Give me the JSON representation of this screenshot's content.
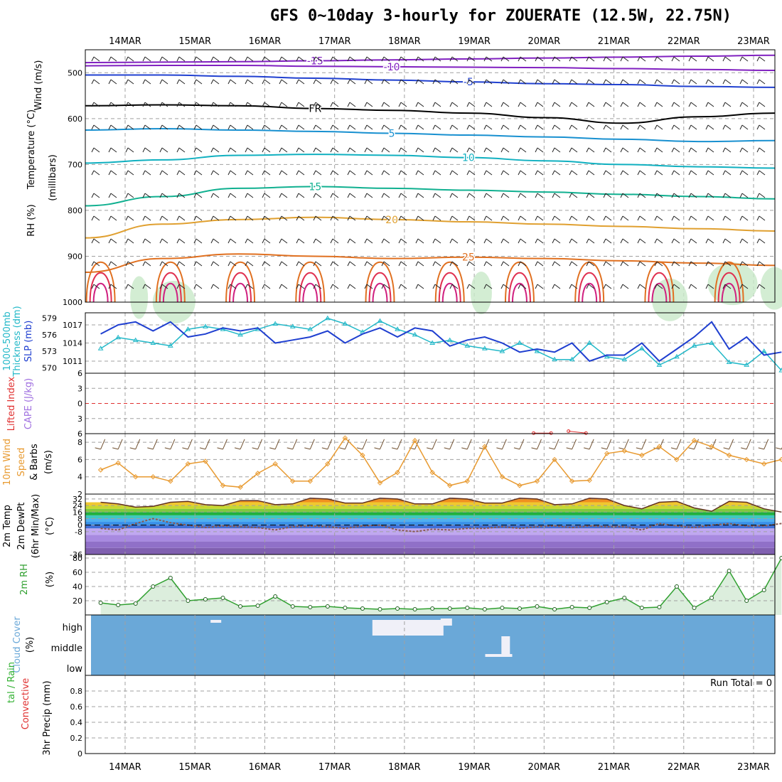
{
  "title": "GFS 0~10day 3-hourly for ZOUERATE (12.5W, 22.75N)",
  "date_labels": [
    "14MAR",
    "15MAR",
    "16MAR",
    "17MAR",
    "18MAR",
    "19MAR",
    "20MAR",
    "21MAR",
    "22MAR",
    "23MAR"
  ],
  "run_total_text": "Run Total = 0",
  "colors": {
    "frame": "#000000",
    "grid": "#a0a0a0",
    "slp": "#1f3fd0",
    "thickness": "#22b8c8",
    "wind10": "#e89a30",
    "lifted": "#e03030",
    "cape": "#a070e0",
    "rh": "#30a030",
    "cloud": "#6aa8d8",
    "temp_fill_warm": "#e85020",
    "dewpt": "#808080"
  },
  "panel_labels": {
    "p1": [
      {
        "text": "Wind (m/s)",
        "color": "#000000"
      },
      {
        "text": "Temperature (°C)",
        "color": "#000000"
      },
      {
        "text": "RH (%)",
        "color": "#000000"
      },
      {
        "text": "(millibars)",
        "color": "#000000"
      }
    ],
    "p2": [
      {
        "text": "1000-500mb",
        "color": "#22b8c8"
      },
      {
        "text": "Thickness (dm)",
        "color": "#22b8c8"
      },
      {
        "text": "SLP (mb)",
        "color": "#1f3fd0"
      }
    ],
    "p3": [
      {
        "text": "Lifted Index",
        "color": "#e03030"
      },
      {
        "text": "CAPE (J/kg)",
        "color": "#a070e0"
      }
    ],
    "p4": [
      {
        "text": "10m Wind",
        "color": "#e89a30"
      },
      {
        "text": "Speed",
        "color": "#e89a30"
      },
      {
        "text": "& Barbs",
        "color": "#000000"
      },
      {
        "text": "(m/s)",
        "color": "#000000"
      }
    ],
    "p5": [
      {
        "text": "2m Temp",
        "color": "#000000"
      },
      {
        "text": "2m DewPt",
        "color": "#000000"
      },
      {
        "text": "(6hr Min/Max)",
        "color": "#000000"
      },
      {
        "text": "(°C)",
        "color": "#000000"
      }
    ],
    "p6": [
      {
        "text": "2m RH",
        "color": "#30a030"
      },
      {
        "text": "(%)",
        "color": "#000000"
      }
    ],
    "p7": [
      {
        "text": "Cloud Cover",
        "color": "#6aa8d8"
      },
      {
        "text": "(%)",
        "color": "#000000"
      }
    ],
    "p8": [
      {
        "text": "tal / Rain",
        "color": "#30b030"
      },
      {
        "text": "Convective",
        "color": "#e03030"
      },
      {
        "text": "3hr Precip (mm)",
        "color": "#000000"
      }
    ]
  },
  "chart_data": [
    {
      "type": "line",
      "name": "upper-air",
      "yticks": [
        500,
        600,
        700,
        800,
        900,
        1000
      ],
      "ylim": [
        450,
        1000
      ],
      "isotherms": [
        {
          "label": "-15",
          "color": "#8020c0",
          "p": [
            478,
            477,
            476,
            474,
            472,
            470,
            468,
            466,
            464,
            462
          ]
        },
        {
          "label": "-10",
          "color": "#8020c0",
          "p": [
            485,
            484,
            484,
            486,
            487,
            488,
            489,
            491,
            493,
            495
          ]
        },
        {
          "label": "-5",
          "color": "#2040d0",
          "p": [
            505,
            505,
            508,
            512,
            516,
            520,
            524,
            526,
            530,
            532
          ]
        },
        {
          "label": "FR",
          "color": "#000000",
          "p": [
            572,
            570,
            572,
            578,
            582,
            588,
            598,
            610,
            596,
            588
          ]
        },
        {
          "label": "5",
          "color": "#1890d0",
          "p": [
            625,
            622,
            625,
            628,
            632,
            636,
            640,
            645,
            650,
            648
          ]
        },
        {
          "label": "10",
          "color": "#10b0c0",
          "p": [
            697,
            690,
            680,
            678,
            680,
            685,
            692,
            700,
            705,
            708
          ]
        },
        {
          "label": "15",
          "color": "#10b090",
          "p": [
            790,
            770,
            752,
            748,
            752,
            756,
            760,
            765,
            770,
            775
          ]
        },
        {
          "label": "20",
          "color": "#e0a030",
          "p": [
            860,
            830,
            820,
            815,
            820,
            825,
            830,
            835,
            840,
            845
          ]
        },
        {
          "label": "25",
          "color": "#e07020",
          "p": [
            935,
            905,
            895,
            900,
            905,
            902,
            905,
            910,
            915,
            920
          ]
        }
      ]
    },
    {
      "type": "line",
      "name": "slp-thickness",
      "slp_ticks": [
        1011,
        1014,
        1017
      ],
      "thickness_ticks": [
        570,
        573,
        576,
        579
      ],
      "slp_ylim": [
        1009,
        1019
      ],
      "thickness_ylim": [
        569,
        580
      ],
      "x": [
        0,
        0.25,
        0.5,
        0.75,
        1,
        1.25,
        1.5,
        1.75,
        2,
        2.25,
        2.5,
        2.75,
        3,
        3.25,
        3.5,
        3.75,
        4,
        4.25,
        4.5,
        4.75,
        5,
        5.25,
        5.5,
        5.75,
        6,
        6.25,
        6.5,
        6.75,
        7,
        7.25,
        7.5,
        7.75,
        8,
        8.25,
        8.5,
        8.75,
        9,
        9.25,
        9.5,
        9.75
      ],
      "series": [
        {
          "name": "SLP",
          "unit": "mb",
          "values": [
            1015.5,
            1017,
            1017.5,
            1016,
            1017.5,
            1015,
            1015.5,
            1016.5,
            1016,
            1016.5,
            1014,
            1014.5,
            1015,
            1016,
            1014,
            1015.5,
            1016.5,
            1015,
            1016.5,
            1016,
            1013.5,
            1014.5,
            1015,
            1014,
            1012.5,
            1013,
            1012.5,
            1014,
            1011,
            1012,
            1012,
            1014,
            1011,
            1013,
            1015,
            1017.5,
            1013,
            1015,
            1012,
            1012.5
          ]
        },
        {
          "name": "Thickness",
          "unit": "dm",
          "values": [
            573.5,
            575.5,
            575,
            574.5,
            574,
            577,
            577.5,
            577,
            576,
            577,
            578,
            577.5,
            577,
            579,
            578,
            576.5,
            578.5,
            577,
            576,
            574.5,
            575,
            574,
            573.5,
            573,
            574.5,
            573,
            571.5,
            571.5,
            574.5,
            572,
            571.5,
            573.5,
            570.5,
            572,
            574,
            574.5,
            571,
            570.5,
            573,
            569.5
          ]
        }
      ]
    },
    {
      "type": "line",
      "name": "lifted-index-cape",
      "yticks": [
        -6,
        -3,
        0,
        3,
        6
      ],
      "ylim": [
        -6,
        6
      ],
      "lifted_index_points": [
        [
          6.25,
          5.9
        ],
        [
          6.5,
          5.9
        ],
        [
          6.75,
          5.5
        ],
        [
          7,
          5.9
        ]
      ],
      "cape_points": []
    },
    {
      "type": "line",
      "name": "wind10m",
      "yticks": [
        2,
        4,
        6,
        8
      ],
      "ylim": [
        2,
        9
      ],
      "x": [
        0,
        0.25,
        0.5,
        0.75,
        1,
        1.25,
        1.5,
        1.75,
        2,
        2.25,
        2.5,
        2.75,
        3,
        3.25,
        3.5,
        3.75,
        4,
        4.25,
        4.5,
        4.75,
        5,
        5.25,
        5.5,
        5.75,
        6,
        6.25,
        6.5,
        6.75,
        7,
        7.25,
        7.5,
        7.75,
        8,
        8.25,
        8.5,
        8.75,
        9,
        9.25,
        9.5,
        9.75
      ],
      "series": [
        {
          "name": "Speed",
          "unit": "m/s",
          "values": [
            4.8,
            5.6,
            4,
            4,
            3.5,
            5.5,
            5.8,
            3,
            2.8,
            4.4,
            5.5,
            3.5,
            3.5,
            5.5,
            8.5,
            6.5,
            3.3,
            4.5,
            8.2,
            4.5,
            3,
            3.5,
            7.5,
            4,
            3,
            3.5,
            6,
            3.5,
            3.6,
            6.7,
            7,
            6.5,
            7.5,
            6,
            8.2,
            7.5,
            6.5,
            6,
            5.5,
            6
          ]
        }
      ]
    },
    {
      "type": "area",
      "name": "temp-dewpt",
      "yticks": [
        -36,
        -8,
        0,
        8,
        16,
        24,
        32
      ],
      "ylim": [
        -36,
        38
      ],
      "x": [
        0,
        0.25,
        0.5,
        0.75,
        1,
        1.25,
        1.5,
        1.75,
        2,
        2.25,
        2.5,
        2.75,
        3,
        3.25,
        3.5,
        3.75,
        4,
        4.25,
        4.5,
        4.75,
        5,
        5.25,
        5.5,
        5.75,
        6,
        6.25,
        6.5,
        6.75,
        7,
        7.25,
        7.5,
        7.75,
        8,
        8.25,
        8.5,
        8.75,
        9,
        9.25,
        9.5,
        9.75
      ],
      "series": [
        {
          "name": "2m Temp",
          "unit": "°C",
          "values": [
            28,
            26,
            22,
            23,
            28,
            29,
            25,
            24,
            30,
            30,
            25,
            26,
            33,
            32,
            27,
            27,
            33,
            32,
            26,
            26,
            33,
            32,
            27,
            27,
            33,
            32,
            25,
            26,
            33,
            32,
            24,
            20,
            28,
            29,
            21,
            17,
            29,
            28,
            20,
            16
          ]
        },
        {
          "name": "2m DewPt",
          "unit": "°C",
          "values": [
            -4,
            -6,
            2,
            8,
            3,
            0,
            -3,
            -1,
            -2,
            -3,
            -6,
            -2,
            -1,
            -2,
            -4,
            -1,
            0,
            -6,
            -8,
            -5,
            -6,
            -4,
            -4,
            -2,
            -4,
            -2,
            -1,
            -3,
            -1,
            -2,
            -2,
            -6,
            2,
            -1,
            -3,
            0,
            2,
            -1,
            -1,
            2
          ]
        }
      ]
    },
    {
      "type": "area",
      "name": "rh2m",
      "yticks": [
        20,
        40,
        60,
        80
      ],
      "ylim": [
        0,
        85
      ],
      "x": [
        0,
        0.25,
        0.5,
        0.75,
        1,
        1.25,
        1.5,
        1.75,
        2,
        2.25,
        2.5,
        2.75,
        3,
        3.25,
        3.5,
        3.75,
        4,
        4.25,
        4.5,
        4.75,
        5,
        5.25,
        5.5,
        5.75,
        6,
        6.25,
        6.5,
        6.75,
        7,
        7.25,
        7.5,
        7.75,
        8,
        8.25,
        8.5,
        8.75,
        9,
        9.25,
        9.5,
        9.75
      ],
      "series": [
        {
          "name": "2m RH",
          "unit": "%",
          "values": [
            17,
            14,
            16,
            40,
            52,
            20,
            22,
            24,
            12,
            13,
            26,
            12,
            11,
            12,
            10,
            9,
            8,
            9,
            8,
            9,
            9,
            10,
            8,
            10,
            9,
            12,
            8,
            11,
            10,
            18,
            24,
            10,
            11,
            40,
            10,
            24,
            62,
            20,
            35,
            80
          ]
        }
      ]
    },
    {
      "type": "bar",
      "name": "cloud-cover",
      "levels": [
        "high",
        "middle",
        "low"
      ]
    },
    {
      "type": "bar",
      "name": "precip",
      "yticks": [
        0,
        0.2,
        0.4,
        0.6,
        0.8
      ],
      "ylim": [
        0,
        1
      ],
      "values": []
    }
  ]
}
